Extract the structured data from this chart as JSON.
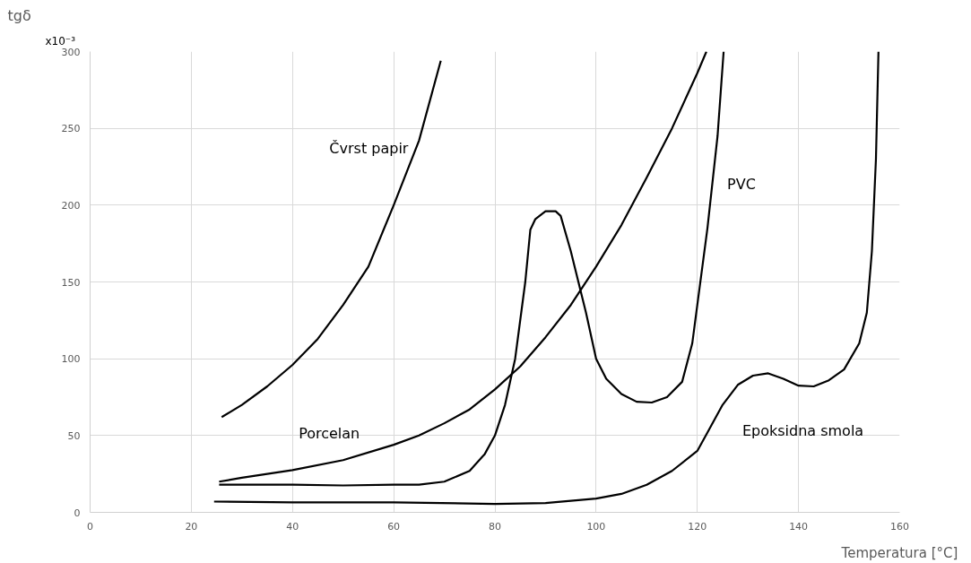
{
  "chart_data": {
    "type": "line",
    "xlabel": "Temperatura [°C]",
    "ylabel": "tgδ",
    "xlim": [
      0,
      160
    ],
    "ylim": [
      0,
      300
    ],
    "xticks": [
      0,
      20,
      40,
      60,
      80,
      100,
      120,
      140,
      160
    ],
    "yticks": [
      0,
      50,
      100,
      150,
      200,
      250,
      300
    ],
    "grid": true,
    "marker": "none",
    "line_style": "solid",
    "series": [
      {
        "name": "Čvrst papir",
        "color": "#000000",
        "x": [
          26,
          30,
          35,
          40,
          45,
          50,
          55,
          60,
          65,
          69.3
        ],
        "values": [
          62,
          70,
          82,
          96,
          113,
          135,
          160,
          200,
          242,
          294
        ]
      },
      {
        "name": "Porcelan",
        "color": "#000000",
        "x": [
          25.5,
          30,
          40,
          50,
          60,
          65,
          70,
          75,
          80,
          85,
          90,
          95,
          100,
          105,
          110,
          115,
          120,
          121.8
        ],
        "values": [
          20,
          22.5,
          27.5,
          34,
          44,
          50,
          58,
          67,
          80,
          95,
          114,
          135,
          160,
          187,
          218,
          250,
          286,
          300
        ]
      },
      {
        "name": "PVC",
        "color": "#000000",
        "x": [
          25.5,
          40,
          50,
          60,
          65,
          70,
          75,
          78,
          80,
          82,
          84,
          86,
          87,
          88,
          90,
          92,
          93,
          95,
          98,
          100,
          102,
          105,
          108,
          111,
          114,
          117,
          119,
          120,
          122,
          124,
          125.2
        ],
        "values": [
          18,
          18,
          17.5,
          18,
          18,
          20,
          27,
          38,
          50,
          70,
          100,
          150,
          184,
          191,
          196,
          196,
          193,
          170,
          130,
          100,
          87,
          77,
          72,
          71.5,
          75,
          85,
          110,
          135,
          185,
          245,
          300
        ]
      },
      {
        "name": "Epoksidna smola",
        "color": "#000000",
        "x": [
          24.5,
          40,
          60,
          80,
          90,
          100,
          105,
          110,
          115,
          120,
          122,
          125,
          128,
          131,
          134,
          137,
          140,
          143,
          146,
          149,
          152,
          153.5,
          154.5,
          155.3,
          155.8
        ],
        "values": [
          7,
          6.5,
          6.5,
          5.5,
          6,
          9,
          12,
          18,
          27,
          40,
          52,
          70,
          83,
          89,
          90.5,
          87,
          82.5,
          82,
          86,
          93,
          110,
          130,
          170,
          230,
          300
        ]
      }
    ],
    "annotations": [
      "x10⁻³"
    ]
  }
}
